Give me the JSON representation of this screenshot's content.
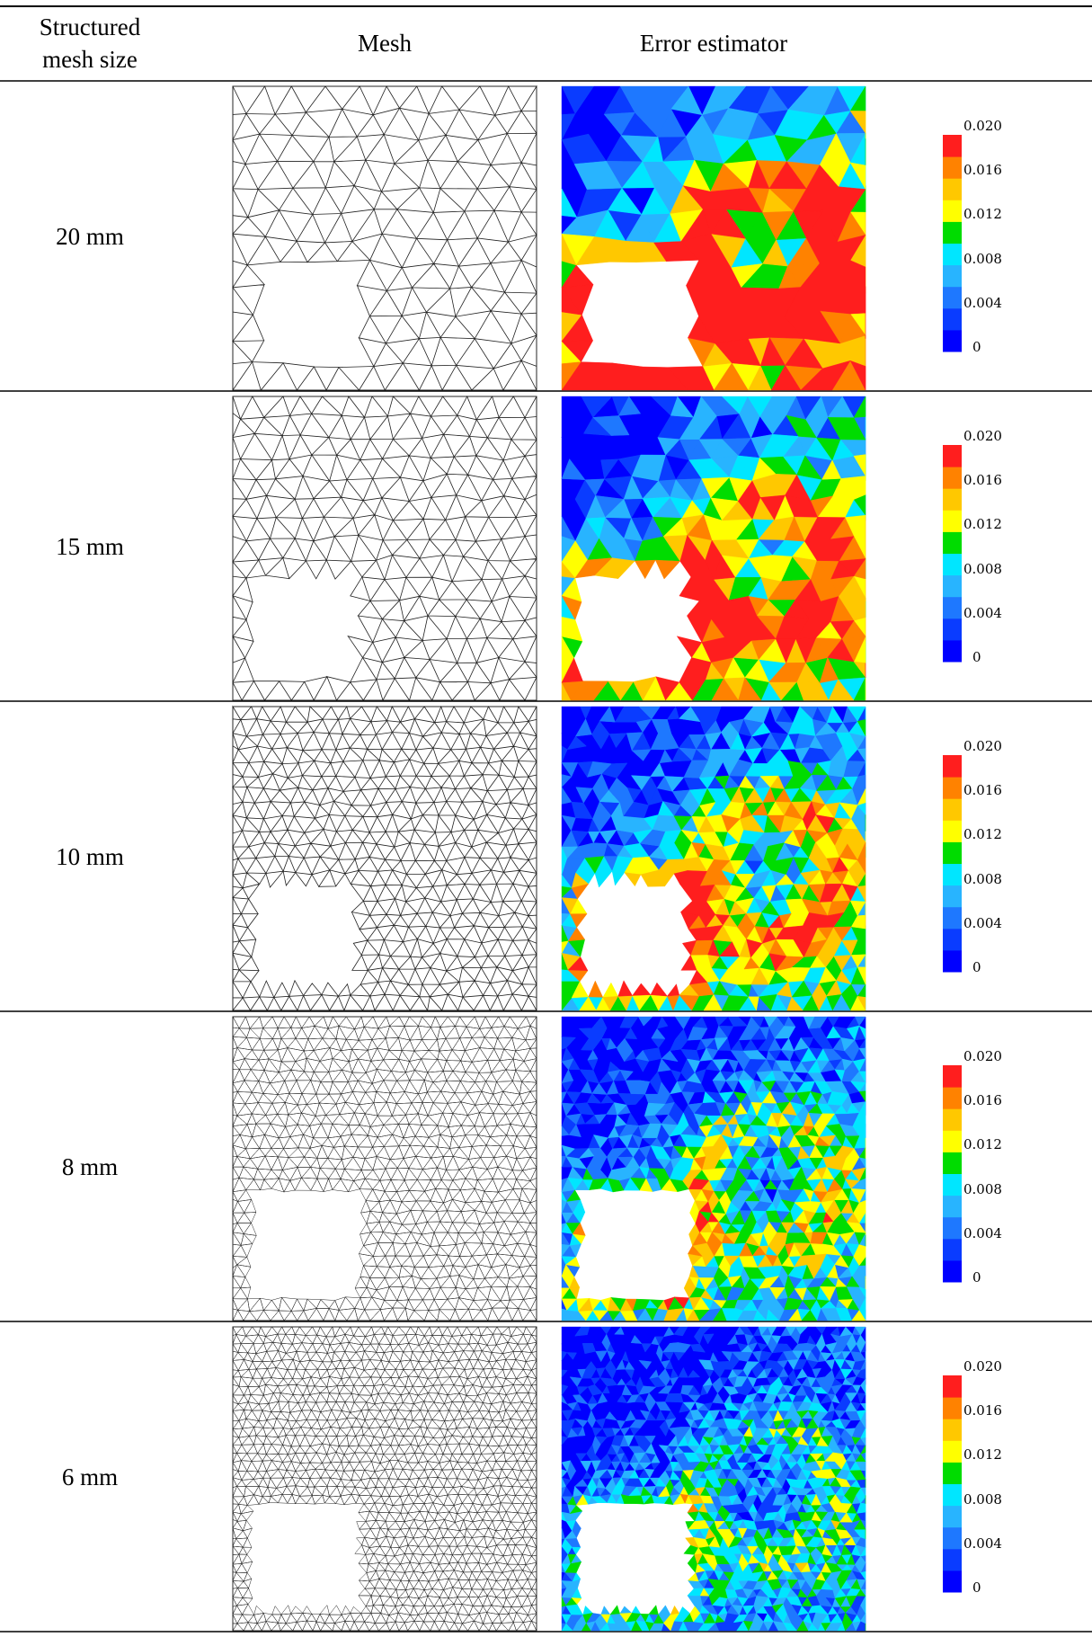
{
  "table": {
    "header": [
      "Structured mesh size",
      "Mesh",
      "Error estimator"
    ],
    "rows": [
      "20 mm",
      "15 mm",
      "10 mm",
      "8 mm",
      "6 mm"
    ],
    "colorbar_labels": [
      "0.020",
      "0.016",
      "0.012",
      "0.008",
      "0.004",
      "0"
    ]
  }
}
